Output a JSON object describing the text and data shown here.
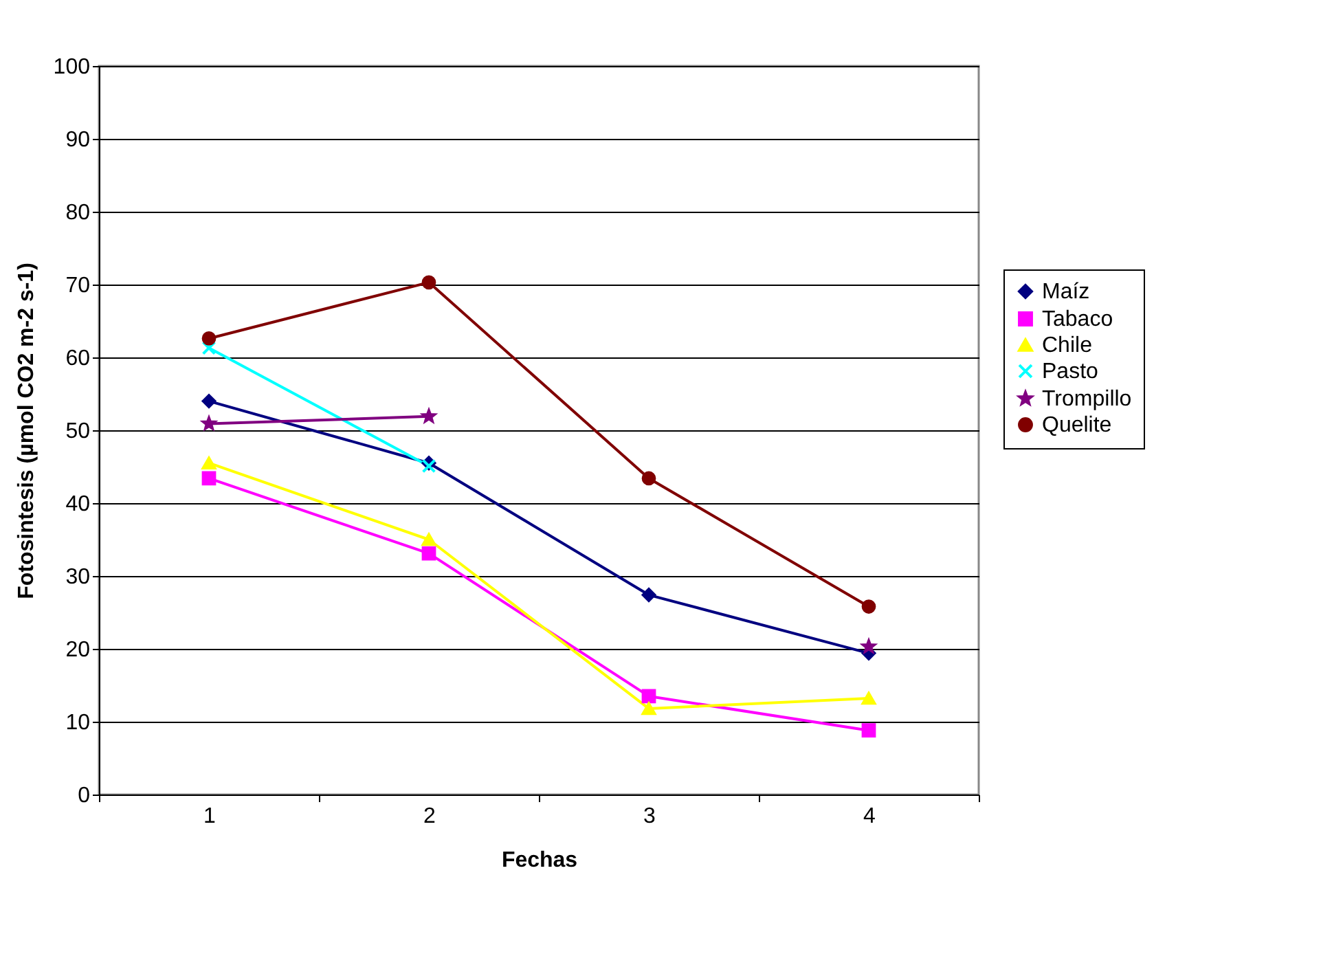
{
  "chart_data": {
    "type": "line",
    "xlabel": "Fechas",
    "ylabel": "Fotosintesis (µmol CO2 m-2 s-1)",
    "categories": [
      "1",
      "2",
      "3",
      "4"
    ],
    "ylim": [
      0,
      100
    ],
    "yticks": [
      0,
      10,
      20,
      30,
      40,
      50,
      60,
      70,
      80,
      90,
      100
    ],
    "grid": "y",
    "legend": "right",
    "line_style": "solid",
    "series": [
      {
        "name": "Maíz",
        "color": "#000080",
        "marker": "diamond",
        "values": [
          54.0,
          45.5,
          27.4,
          19.4
        ]
      },
      {
        "name": "Tabaco",
        "color": "#ff00ff",
        "marker": "square",
        "values": [
          43.4,
          33.1,
          13.5,
          8.8
        ]
      },
      {
        "name": "Chile",
        "color": "#ffff00",
        "marker": "triangle",
        "values": [
          45.5,
          35.0,
          11.8,
          13.2
        ]
      },
      {
        "name": "Pasto",
        "color": "#00ffff",
        "marker": "cross",
        "values": [
          61.3,
          45.1,
          null,
          null
        ]
      },
      {
        "name": "Trompillo",
        "color": "#800080",
        "marker": "star",
        "values": [
          50.9,
          51.9,
          null,
          20.3
        ]
      },
      {
        "name": "Quelite",
        "color": "#800000",
        "marker": "circle",
        "values": [
          62.6,
          70.3,
          43.4,
          25.8
        ]
      }
    ]
  }
}
